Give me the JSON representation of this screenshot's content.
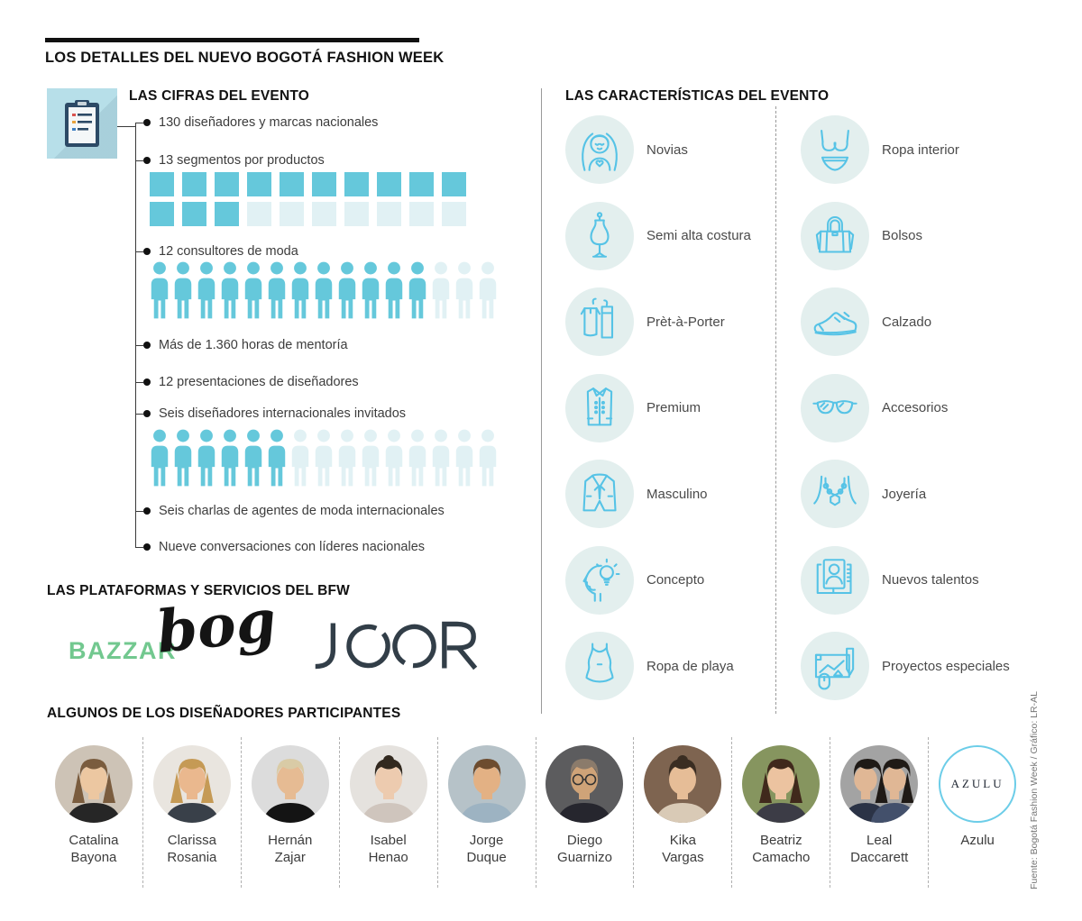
{
  "header": {
    "title": "LOS DETALLES DEL NUEVO BOGOTÁ FASHION WEEK"
  },
  "cifras": {
    "heading": "LAS CIFRAS DEL EVENTO",
    "icon": "clipboard-icon",
    "items": [
      {
        "label": "130 diseñadores y marcas nacionales"
      },
      {
        "label": "13 segmentos por productos",
        "pictograph": {
          "type": "squares",
          "filled": 13,
          "total": 20,
          "per_row": 10
        }
      },
      {
        "label": "12 consultores de moda",
        "pictograph": {
          "type": "persons",
          "filled": 12,
          "total": 15
        }
      },
      {
        "label": "Más de 1.360 horas de mentoría"
      },
      {
        "label": "12 presentaciones de diseñadores"
      },
      {
        "label": "Seis diseñadores internacionales invitados",
        "pictograph": {
          "type": "persons",
          "filled": 6,
          "total": 15
        }
      },
      {
        "label": "Seis charlas de agentes de moda internacionales"
      },
      {
        "label": "Nueve conversaciones con líderes nacionales"
      }
    ]
  },
  "plataformas": {
    "heading": "LAS PLATAFORMAS Y SERVICIOS DEL BFW",
    "logos": [
      {
        "name": "Bazzar bog",
        "text_primary": "BAZZAR",
        "text_script": "bog"
      },
      {
        "name": "JOOR",
        "text": "JOOR"
      }
    ]
  },
  "caracteristicas": {
    "heading": "LAS CARACTERÍSTICAS DEL EVENTO",
    "column_a": [
      {
        "label": "Novias",
        "icon": "bride-icon"
      },
      {
        "label": "Semi alta costura",
        "icon": "dressform-icon"
      },
      {
        "label": "Prèt-à-Porter",
        "icon": "hangers-icon"
      },
      {
        "label": "Premium",
        "icon": "coat-icon"
      },
      {
        "label": "Masculino",
        "icon": "suit-icon"
      },
      {
        "label": "Concepto",
        "icon": "idea-head-icon"
      },
      {
        "label": "Ropa de playa",
        "icon": "swimsuit-icon"
      }
    ],
    "column_b": [
      {
        "label": "Ropa interior",
        "icon": "lingerie-icon"
      },
      {
        "label": "Bolsos",
        "icon": "handbag-icon"
      },
      {
        "label": "Calzado",
        "icon": "sneaker-icon"
      },
      {
        "label": "Accesorios",
        "icon": "sunglasses-icon"
      },
      {
        "label": "Joyería",
        "icon": "necklace-icon"
      },
      {
        "label": "Nuevos talentos",
        "icon": "id-cards-icon"
      },
      {
        "label": "Proyectos especiales",
        "icon": "artboard-icon"
      }
    ]
  },
  "designers": {
    "heading": "ALGUNOS DE LOS DISEÑADORES PARTICIPANTES",
    "list": [
      {
        "name": "Catalina Bayona",
        "type": "photo"
      },
      {
        "name": "Clarissa Rosania",
        "type": "photo"
      },
      {
        "name": "Hernán Zajar",
        "type": "photo"
      },
      {
        "name": "Isabel Henao",
        "type": "photo"
      },
      {
        "name": "Jorge Duque",
        "type": "photo"
      },
      {
        "name": "Diego Guarnizo",
        "type": "photo"
      },
      {
        "name": "Kika Vargas",
        "type": "photo"
      },
      {
        "name": "Beatriz Camacho",
        "type": "photo"
      },
      {
        "name": "Leal Daccarett",
        "type": "photo"
      },
      {
        "name": "Azulu",
        "type": "logo",
        "logo_text": "AZULU"
      }
    ]
  },
  "source": "Fuente: Bogotá Fashion Week / Gráfico: LR-AL",
  "colors": {
    "accent_teal": "#65C8DB",
    "accent_teal_light": "#E1F1F4",
    "icon_stroke": "#56C3E6",
    "icon_circle_bg": "#E3EFEE",
    "bazzar_green": "#72C88F",
    "joor_navy": "#323E48"
  }
}
